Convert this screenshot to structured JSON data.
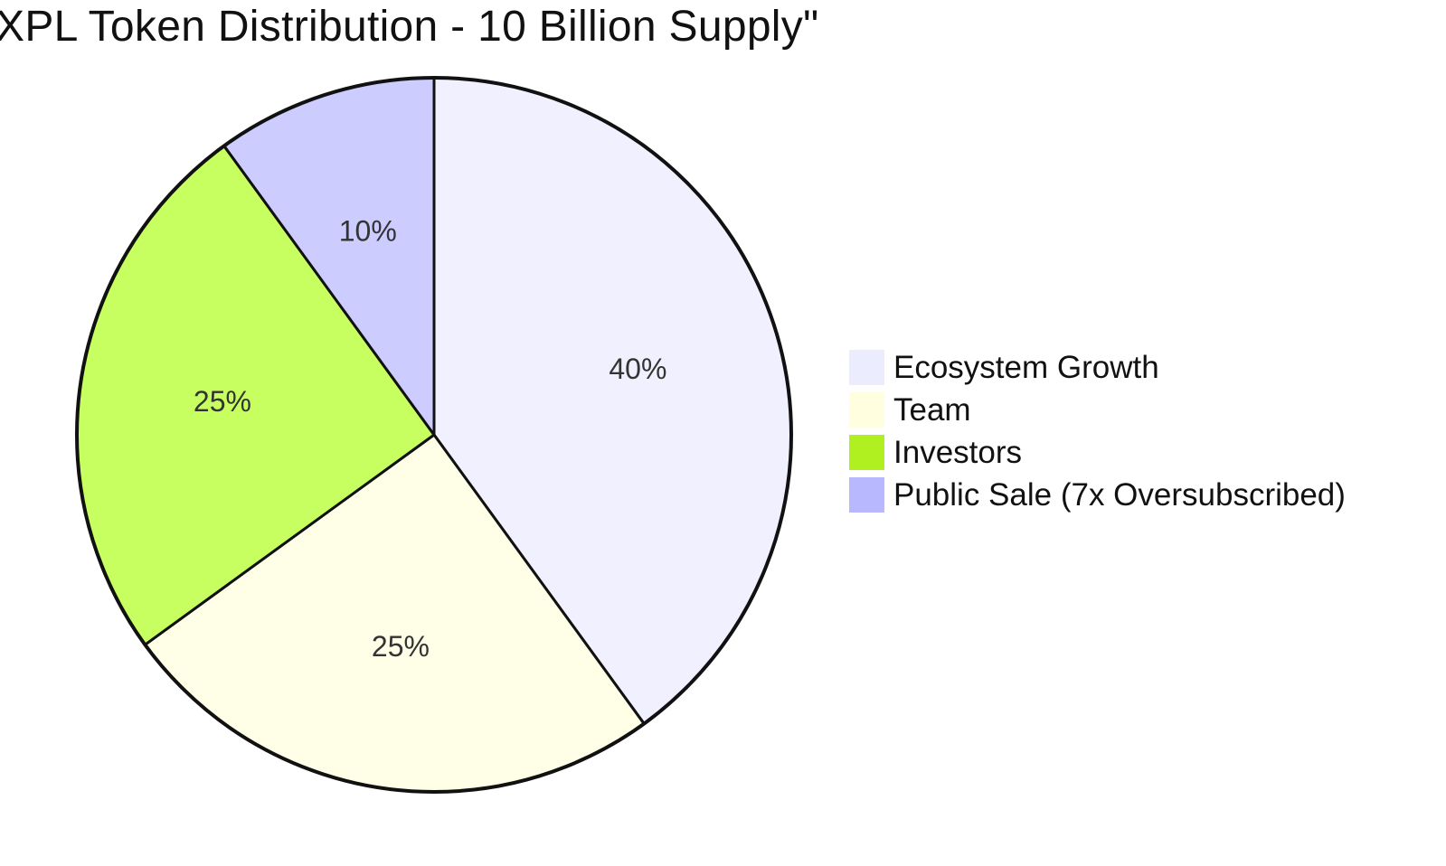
{
  "chart_data": {
    "type": "pie",
    "title": "XPL Token Distribution - 10 Billion Supply\"",
    "slices": [
      {
        "label": "Ecosystem Growth",
        "value": 40,
        "display": "40%",
        "color": "#f0f0ff"
      },
      {
        "label": "Team",
        "value": 25,
        "display": "25%",
        "color": "#ffffe8"
      },
      {
        "label": "Investors",
        "value": 25,
        "display": "25%",
        "color": "#c8ff60"
      },
      {
        "label": "Public Sale (7x Oversubscribed)",
        "value": 10,
        "display": "10%",
        "color": "#ccccff"
      }
    ],
    "legend": {
      "position": "right",
      "items": [
        {
          "label": "Ecosystem Growth",
          "color": "#ececff"
        },
        {
          "label": "Team",
          "color": "#ffffe0"
        },
        {
          "label": "Investors",
          "color": "#b0f020"
        },
        {
          "label": "Public Sale (7x Oversubscribed)",
          "color": "#b8b8ff"
        }
      ]
    },
    "start_angle": "top",
    "direction": "clockwise"
  }
}
